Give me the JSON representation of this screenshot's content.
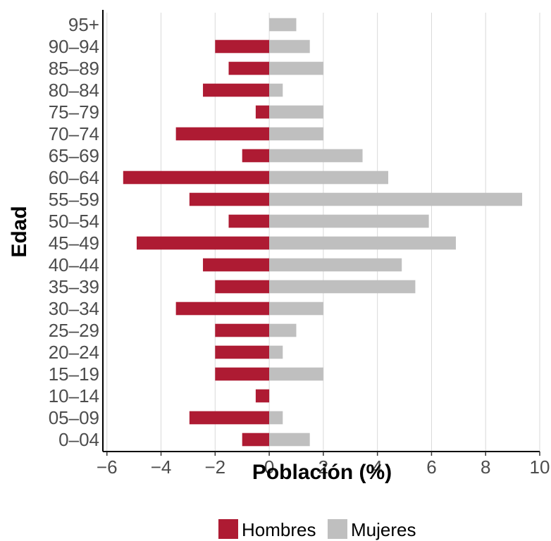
{
  "chart_data": {
    "type": "bar",
    "orientation": "horizontal",
    "categories": [
      "0–04",
      "05–09",
      "10–14",
      "15–19",
      "20–24",
      "25–29",
      "30–34",
      "35–39",
      "40–44",
      "45–49",
      "50–54",
      "55–59",
      "60–64",
      "65–69",
      "70–74",
      "75–79",
      "80–84",
      "85–89",
      "90–94",
      "95+"
    ],
    "series": [
      {
        "name": "Hombres",
        "color": "#ae1b33",
        "values": [
          -1.0,
          -2.95,
          -0.5,
          -2.0,
          -2.0,
          -2.0,
          -3.45,
          -2.0,
          -2.45,
          -4.9,
          -1.5,
          -2.95,
          -5.4,
          -1.0,
          -3.45,
          -0.5,
          -2.45,
          -1.5,
          -2.0,
          0
        ]
      },
      {
        "name": "Mujeres",
        "color": "#bfbfbf",
        "values": [
          1.5,
          0.5,
          0,
          2.0,
          0.5,
          1.0,
          2.0,
          5.4,
          4.9,
          6.9,
          5.9,
          9.35,
          4.4,
          3.45,
          2.0,
          2.0,
          0.5,
          2.0,
          1.5,
          1.0
        ]
      }
    ],
    "xlabel": "Población (%)",
    "ylabel": "Edad",
    "xlim": [
      -6.15,
      10
    ],
    "xticks": [
      -6,
      -4,
      -2,
      0,
      2,
      4,
      6,
      8,
      10
    ],
    "xtick_labels": [
      "−6",
      "−4",
      "−2",
      "0",
      "2",
      "4",
      "6",
      "8",
      "10"
    ],
    "grid": "vertical major lines",
    "legend_position": "bottom"
  }
}
